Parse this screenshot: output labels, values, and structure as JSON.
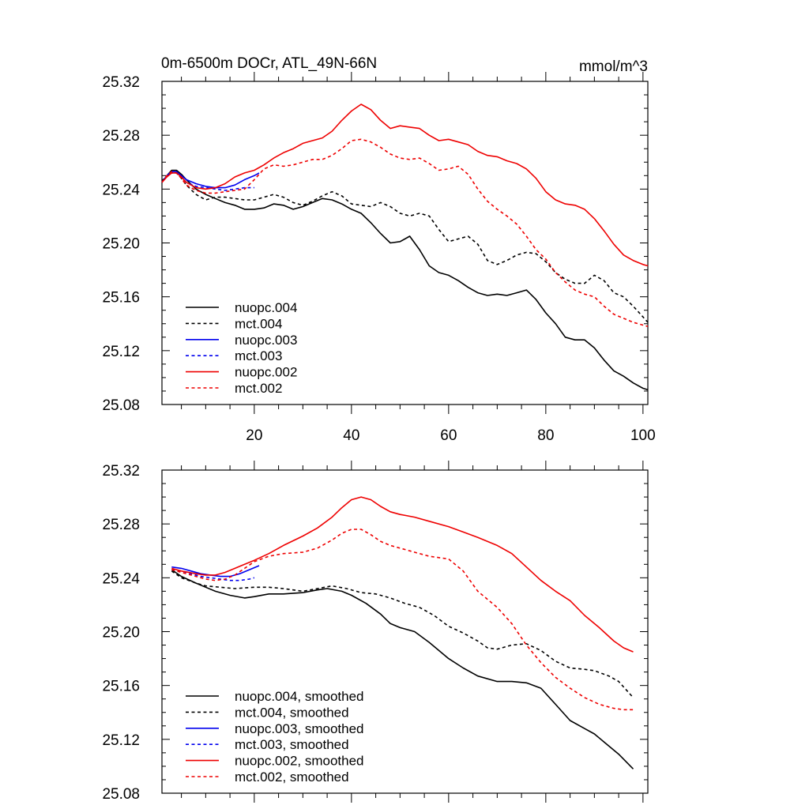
{
  "colors": {
    "black": "#000000",
    "blue": "#0000ee",
    "red": "#ee0000"
  },
  "chart_data": [
    {
      "type": "line",
      "title": "0m-6500m DOCr, ATL_49N-66N",
      "units": "mmol/m^3",
      "xlim": [
        1,
        101
      ],
      "ylim": [
        25.08,
        25.32
      ],
      "yticks": [
        "25.32",
        "25.28",
        "25.24",
        "25.20",
        "25.16",
        "25.12",
        "25.08"
      ],
      "xticks": [
        "20",
        "40",
        "60",
        "80",
        "100"
      ],
      "legend_position": "lower-left",
      "series": [
        {
          "name": "nuopc.004",
          "color": "#000000",
          "dash": "solid",
          "x": [
            1,
            2,
            3,
            4,
            5,
            6,
            8,
            10,
            12,
            14,
            16,
            18,
            20,
            22,
            24,
            26,
            28,
            30,
            32,
            34,
            36,
            38,
            40,
            42,
            44,
            46,
            48,
            50,
            52,
            54,
            56,
            58,
            60,
            62,
            64,
            66,
            68,
            70,
            72,
            74,
            76,
            78,
            80,
            82,
            84,
            86,
            88,
            90,
            92,
            94,
            96,
            98,
            100,
            101
          ],
          "y": [
            25.245,
            25.25,
            25.254,
            25.254,
            25.251,
            25.247,
            25.24,
            25.236,
            25.233,
            25.23,
            25.228,
            25.225,
            25.225,
            25.226,
            25.229,
            25.228,
            25.225,
            25.227,
            25.23,
            25.233,
            25.232,
            25.229,
            25.225,
            25.222,
            25.215,
            25.207,
            25.2,
            25.201,
            25.205,
            25.195,
            25.183,
            25.178,
            25.176,
            25.172,
            25.167,
            25.163,
            25.161,
            25.162,
            25.161,
            25.163,
            25.165,
            25.158,
            25.148,
            25.14,
            25.13,
            25.128,
            25.128,
            25.122,
            25.113,
            25.105,
            25.101,
            25.096,
            25.092,
            25.091
          ]
        },
        {
          "name": "mct.004",
          "color": "#000000",
          "dash": "dashed",
          "x": [
            1,
            2,
            3,
            4,
            5,
            6,
            8,
            10,
            12,
            14,
            16,
            18,
            20,
            22,
            24,
            26,
            28,
            30,
            32,
            34,
            36,
            38,
            40,
            42,
            44,
            46,
            48,
            50,
            52,
            54,
            56,
            58,
            60,
            62,
            64,
            66,
            68,
            70,
            72,
            74,
            76,
            78,
            80,
            82,
            84,
            86,
            88,
            90,
            92,
            94,
            96,
            98,
            100,
            101
          ],
          "y": [
            25.246,
            25.25,
            25.253,
            25.252,
            25.248,
            25.243,
            25.236,
            25.232,
            25.234,
            25.234,
            25.233,
            25.232,
            25.232,
            25.234,
            25.236,
            25.234,
            25.23,
            25.228,
            25.231,
            25.235,
            25.238,
            25.235,
            25.229,
            25.228,
            25.227,
            25.23,
            25.227,
            25.222,
            25.22,
            25.222,
            25.22,
            25.21,
            25.201,
            25.203,
            25.205,
            25.199,
            25.187,
            25.184,
            25.187,
            25.191,
            25.193,
            25.192,
            25.186,
            25.178,
            25.173,
            25.17,
            25.17,
            25.176,
            25.172,
            25.163,
            25.16,
            25.153,
            25.145,
            25.141
          ]
        },
        {
          "name": "nuopc.003",
          "color": "#0000ee",
          "dash": "solid",
          "x": [
            1,
            2,
            3,
            4,
            5,
            6,
            8,
            10,
            12,
            14,
            16,
            18,
            20,
            21
          ],
          "y": [
            25.245,
            25.25,
            25.253,
            25.253,
            25.25,
            25.247,
            25.244,
            25.242,
            25.241,
            25.241,
            25.243,
            25.247,
            25.25,
            25.252
          ]
        },
        {
          "name": "mct.003",
          "color": "#0000ee",
          "dash": "dashed",
          "x": [
            1,
            2,
            3,
            4,
            5,
            6,
            8,
            10,
            12,
            14,
            16,
            18,
            20
          ],
          "y": [
            25.245,
            25.25,
            25.252,
            25.252,
            25.249,
            25.245,
            25.242,
            25.241,
            25.24,
            25.239,
            25.24,
            25.241,
            25.241
          ]
        },
        {
          "name": "nuopc.002",
          "color": "#ee0000",
          "dash": "solid",
          "x": [
            1,
            2,
            3,
            4,
            5,
            6,
            8,
            10,
            12,
            14,
            16,
            18,
            20,
            22,
            24,
            26,
            28,
            30,
            32,
            34,
            36,
            38,
            40,
            42,
            44,
            46,
            48,
            50,
            52,
            54,
            56,
            58,
            60,
            62,
            64,
            66,
            68,
            70,
            72,
            74,
            76,
            78,
            80,
            82,
            84,
            86,
            88,
            90,
            92,
            94,
            96,
            98,
            100,
            101
          ],
          "y": [
            25.245,
            25.249,
            25.252,
            25.252,
            25.249,
            25.245,
            25.241,
            25.24,
            25.241,
            25.244,
            25.249,
            25.252,
            25.254,
            25.258,
            25.263,
            25.267,
            25.27,
            25.274,
            25.276,
            25.278,
            25.283,
            25.291,
            25.298,
            25.303,
            25.299,
            25.291,
            25.285,
            25.287,
            25.286,
            25.285,
            25.28,
            25.276,
            25.277,
            25.275,
            25.273,
            25.268,
            25.265,
            25.264,
            25.261,
            25.259,
            25.255,
            25.248,
            25.238,
            25.232,
            25.229,
            25.228,
            25.225,
            25.218,
            25.209,
            25.199,
            25.191,
            25.187,
            25.184,
            25.183
          ]
        },
        {
          "name": "mct.002",
          "color": "#ee0000",
          "dash": "dashed",
          "x": [
            1,
            2,
            3,
            4,
            5,
            6,
            8,
            10,
            12,
            14,
            16,
            18,
            20,
            22,
            24,
            26,
            28,
            30,
            32,
            34,
            36,
            38,
            40,
            42,
            44,
            46,
            48,
            50,
            52,
            54,
            56,
            58,
            60,
            62,
            64,
            66,
            68,
            70,
            72,
            74,
            76,
            78,
            80,
            82,
            84,
            86,
            88,
            90,
            92,
            94,
            96,
            98,
            100,
            101
          ],
          "y": [
            25.245,
            25.25,
            25.253,
            25.252,
            25.248,
            25.243,
            25.239,
            25.237,
            25.237,
            25.238,
            25.239,
            25.24,
            25.247,
            25.255,
            25.258,
            25.257,
            25.258,
            25.26,
            25.262,
            25.262,
            25.265,
            25.27,
            25.276,
            25.277,
            25.275,
            25.271,
            25.266,
            25.263,
            25.262,
            25.263,
            25.259,
            25.254,
            25.255,
            25.257,
            25.251,
            25.24,
            25.231,
            25.225,
            25.22,
            25.214,
            25.205,
            25.195,
            25.188,
            25.178,
            25.171,
            25.165,
            25.162,
            25.16,
            25.153,
            25.147,
            25.144,
            25.141,
            25.139,
            25.138
          ]
        }
      ],
      "legend": [
        "nuopc.004",
        "mct.004",
        "nuopc.003",
        "mct.003",
        "nuopc.002",
        "mct.002"
      ]
    },
    {
      "type": "line",
      "xlim": [
        1,
        101
      ],
      "ylim": [
        25.08,
        25.32
      ],
      "yticks": [
        "25.32",
        "25.28",
        "25.24",
        "25.20",
        "25.16",
        "25.12",
        "25.08"
      ],
      "legend_position": "lower-left",
      "series": [
        {
          "name": "nuopc.004, smoothed",
          "color": "#000000",
          "dash": "solid",
          "x": [
            3,
            5,
            8,
            10,
            12,
            15,
            18,
            20,
            23,
            26,
            30,
            33,
            35,
            38,
            40,
            43,
            46,
            48,
            50,
            53,
            56,
            60,
            63,
            66,
            70,
            73,
            76,
            79,
            82,
            85,
            88,
            90,
            93,
            95,
            98
          ],
          "y": [
            25.246,
            25.241,
            25.236,
            25.233,
            25.23,
            25.227,
            25.225,
            25.226,
            25.228,
            25.228,
            25.229,
            25.231,
            25.232,
            25.23,
            25.227,
            25.221,
            25.213,
            25.206,
            25.203,
            25.2,
            25.192,
            25.18,
            25.173,
            25.167,
            25.163,
            25.163,
            25.162,
            25.158,
            25.146,
            25.134,
            25.128,
            25.124,
            25.115,
            25.109,
            25.098
          ]
        },
        {
          "name": "mct.004, smoothed",
          "color": "#000000",
          "dash": "dashed",
          "x": [
            3,
            5,
            8,
            10,
            13,
            16,
            20,
            23,
            26,
            30,
            33,
            36,
            39,
            42,
            45,
            48,
            51,
            54,
            57,
            60,
            63,
            66,
            68,
            70,
            73,
            76,
            79,
            82,
            85,
            88,
            90,
            93,
            95,
            98
          ],
          "y": [
            25.245,
            25.24,
            25.236,
            25.234,
            25.233,
            25.232,
            25.233,
            25.233,
            25.232,
            25.23,
            25.232,
            25.234,
            25.232,
            25.229,
            25.228,
            25.225,
            25.221,
            25.218,
            25.212,
            25.204,
            25.199,
            25.193,
            25.188,
            25.187,
            25.19,
            25.191,
            25.186,
            25.178,
            25.173,
            25.172,
            25.171,
            25.167,
            25.163,
            25.151
          ]
        },
        {
          "name": "nuopc.003, smoothed",
          "color": "#0000ee",
          "dash": "solid",
          "x": [
            3,
            5,
            7,
            9,
            11,
            13,
            15,
            17,
            19,
            21
          ],
          "y": [
            25.248,
            25.247,
            25.245,
            25.243,
            25.242,
            25.241,
            25.241,
            25.243,
            25.246,
            25.249
          ]
        },
        {
          "name": "mct.003, smoothed",
          "color": "#0000ee",
          "dash": "dashed",
          "x": [
            3,
            5,
            7,
            9,
            11,
            13,
            15,
            17,
            19,
            20
          ],
          "y": [
            25.246,
            25.245,
            25.243,
            25.241,
            25.24,
            25.239,
            25.238,
            25.238,
            25.239,
            25.24
          ]
        },
        {
          "name": "nuopc.002, smoothed",
          "color": "#ee0000",
          "dash": "solid",
          "x": [
            3,
            5,
            8,
            10,
            12,
            14,
            16,
            18,
            20,
            23,
            26,
            30,
            33,
            36,
            38,
            40,
            42,
            44,
            46,
            48,
            50,
            53,
            56,
            60,
            63,
            66,
            70,
            73,
            76,
            79,
            82,
            85,
            88,
            91,
            94,
            96,
            98
          ],
          "y": [
            25.247,
            25.245,
            25.243,
            25.242,
            25.242,
            25.244,
            25.247,
            25.25,
            25.253,
            25.258,
            25.264,
            25.271,
            25.277,
            25.285,
            25.292,
            25.298,
            25.3,
            25.298,
            25.293,
            25.289,
            25.287,
            25.285,
            25.282,
            25.278,
            25.274,
            25.27,
            25.264,
            25.258,
            25.248,
            25.238,
            25.23,
            25.223,
            25.212,
            25.203,
            25.193,
            25.188,
            25.185
          ]
        },
        {
          "name": "mct.002, smoothed",
          "color": "#ee0000",
          "dash": "dashed",
          "x": [
            3,
            5,
            8,
            10,
            12,
            14,
            16,
            18,
            20,
            23,
            26,
            30,
            33,
            36,
            38,
            40,
            42,
            44,
            46,
            48,
            50,
            53,
            56,
            60,
            63,
            66,
            70,
            73,
            76,
            79,
            82,
            85,
            88,
            91,
            94,
            96,
            98
          ],
          "y": [
            25.246,
            25.244,
            25.241,
            25.239,
            25.238,
            25.239,
            25.242,
            25.247,
            25.252,
            25.256,
            25.258,
            25.259,
            25.262,
            25.268,
            25.273,
            25.276,
            25.276,
            25.272,
            25.267,
            25.264,
            25.262,
            25.259,
            25.256,
            25.254,
            25.245,
            25.23,
            25.218,
            25.206,
            25.19,
            25.177,
            25.166,
            25.158,
            25.151,
            25.146,
            25.143,
            25.142,
            25.142
          ]
        }
      ],
      "legend": [
        "nuopc.004, smoothed",
        "mct.004, smoothed",
        "nuopc.003, smoothed",
        "mct.003, smoothed",
        "nuopc.002, smoothed",
        "mct.002, smoothed"
      ]
    }
  ]
}
